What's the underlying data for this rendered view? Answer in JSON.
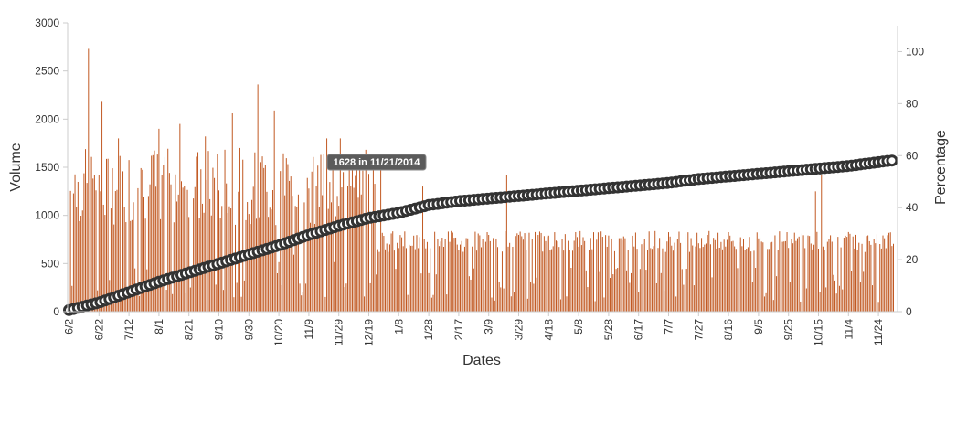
{
  "chart_data": {
    "type": "bar",
    "xlabel": "Dates",
    "ylabel_left": "Volume",
    "ylabel_right": "Percentage",
    "ylim_left": [
      0,
      3000
    ],
    "ylim_right": [
      0,
      110
    ],
    "yticks_left": [
      "0",
      "500",
      "1000",
      "1500",
      "2000",
      "2500",
      "3000"
    ],
    "yticks_right": [
      "0",
      "20",
      "40",
      "60",
      "80",
      "100"
    ],
    "x_tick_labels": [
      "6/2",
      "6/22",
      "7/12",
      "8/1",
      "8/21",
      "9/10",
      "9/30",
      "10/20",
      "11/9",
      "11/29",
      "12/19",
      "1/8",
      "1/28",
      "2/17",
      "3/9",
      "3/29",
      "4/18",
      "5/8",
      "5/28",
      "6/17",
      "7/7",
      "7/27",
      "8/16",
      "9/5",
      "9/25",
      "10/15",
      "11/4",
      "11/24"
    ],
    "grid": false,
    "legend": "none",
    "series_bar": {
      "color": "#c0561e",
      "note_values": "approximate daily volume, one bar per day",
      "peak_values": {
        "6/22": 2730,
        "7/1": 2180,
        "10/6": 2360,
        "10/17": 2090,
        "3/21": 1420,
        "10/18": 1420,
        "10/12": 1250
      }
    },
    "series_line": {
      "color": "#333333",
      "marker": "circle",
      "values_at_ticks": [
        0.6,
        3.5,
        7.5,
        11.5,
        15,
        18.5,
        22,
        25.5,
        29.5,
        33,
        36,
        38,
        41,
        42.5,
        43.5,
        44.5,
        45.5,
        46.5,
        47.5,
        48.5,
        49.5,
        51,
        52,
        53,
        54,
        55,
        56,
        57.5
      ]
    },
    "tooltip": "1628 in 11/21/2014"
  }
}
